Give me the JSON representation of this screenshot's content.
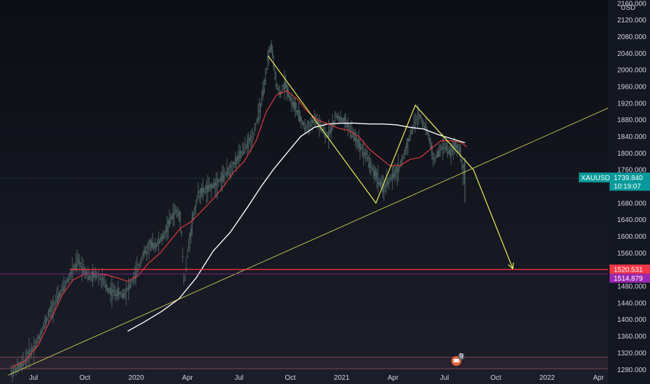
{
  "chart_data": {
    "type": "line",
    "symbol": "XAUUSD",
    "currency": "USD",
    "y_ticks": [
      2160,
      2120,
      2080,
      2040,
      2000,
      1960,
      1920,
      1880,
      1840,
      1800,
      1760,
      1720,
      1680,
      1640,
      1600,
      1560,
      1520,
      1480,
      1440,
      1400,
      1360,
      1320,
      1280
    ],
    "y_tick_labels": [
      "2160.000",
      "2120.000",
      "2080.000",
      "2040.000",
      "2000.000",
      "1960.000",
      "1920.000",
      "1880.000",
      "1840.000",
      "1800.000",
      "1760.000",
      "1720.000",
      "1680.000",
      "1640.000",
      "1600.000",
      "1560.000",
      "1520.000",
      "1480.000",
      "1440.000",
      "1400.000",
      "1360.000",
      "1320.000",
      "1280.000"
    ],
    "ylim": [
      1262,
      2168
    ],
    "x_ticks": [
      {
        "label": "Jul",
        "month": 6
      },
      {
        "label": "Oct",
        "month": 9
      },
      {
        "label": "2020",
        "month": 12
      },
      {
        "label": "Apr",
        "month": 15
      },
      {
        "label": "Jul",
        "month": 18
      },
      {
        "label": "Oct",
        "month": 21
      },
      {
        "label": "2021",
        "month": 24
      },
      {
        "label": "Apr",
        "month": 27
      },
      {
        "label": "Jul",
        "month": 30
      },
      {
        "label": "Oct",
        "month": 33
      },
      {
        "label": "2022",
        "month": 36
      },
      {
        "label": "Apr",
        "month": 39
      }
    ],
    "price_series": [
      [
        4.7,
        1272
      ],
      [
        5.3,
        1290
      ],
      [
        5.8,
        1320
      ],
      [
        6.2,
        1345
      ],
      [
        6.6,
        1385
      ],
      [
        7.0,
        1420
      ],
      [
        7.4,
        1450
      ],
      [
        7.8,
        1480
      ],
      [
        8.2,
        1510
      ],
      [
        8.6,
        1540
      ],
      [
        8.9,
        1525
      ],
      [
        9.3,
        1500
      ],
      [
        9.7,
        1510
      ],
      [
        10.0,
        1495
      ],
      [
        10.4,
        1470
      ],
      [
        10.8,
        1465
      ],
      [
        11.2,
        1460
      ],
      [
        11.6,
        1478
      ],
      [
        12.0,
        1512
      ],
      [
        12.4,
        1555
      ],
      [
        12.8,
        1578
      ],
      [
        13.2,
        1580
      ],
      [
        13.6,
        1600
      ],
      [
        14.0,
        1640
      ],
      [
        14.3,
        1662
      ],
      [
        14.6,
        1645
      ],
      [
        14.8,
        1480
      ],
      [
        15.0,
        1560
      ],
      [
        15.3,
        1640
      ],
      [
        15.6,
        1700
      ],
      [
        16.0,
        1710
      ],
      [
        16.4,
        1718
      ],
      [
        16.8,
        1732
      ],
      [
        17.2,
        1748
      ],
      [
        17.6,
        1768
      ],
      [
        18.0,
        1790
      ],
      [
        18.4,
        1815
      ],
      [
        18.8,
        1840
      ],
      [
        19.2,
        1900
      ],
      [
        19.5,
        1960
      ],
      [
        19.7,
        2030
      ],
      [
        19.9,
        2060
      ],
      [
        20.1,
        1985
      ],
      [
        20.4,
        1940
      ],
      [
        20.7,
        1970
      ],
      [
        21.0,
        1930
      ],
      [
        21.3,
        1910
      ],
      [
        21.6,
        1880
      ],
      [
        21.9,
        1860
      ],
      [
        22.2,
        1870
      ],
      [
        22.5,
        1880
      ],
      [
        22.8,
        1860
      ],
      [
        23.1,
        1840
      ],
      [
        23.4,
        1860
      ],
      [
        23.7,
        1890
      ],
      [
        24.0,
        1880
      ],
      [
        24.3,
        1870
      ],
      [
        24.6,
        1850
      ],
      [
        24.9,
        1830
      ],
      [
        25.2,
        1810
      ],
      [
        25.5,
        1790
      ],
      [
        25.8,
        1760
      ],
      [
        26.1,
        1740
      ],
      [
        26.4,
        1715
      ],
      [
        26.7,
        1730
      ],
      [
        27.0,
        1745
      ],
      [
        27.3,
        1760
      ],
      [
        27.6,
        1790
      ],
      [
        27.9,
        1830
      ],
      [
        28.2,
        1865
      ],
      [
        28.5,
        1895
      ],
      [
        28.8,
        1870
      ],
      [
        29.1,
        1840
      ],
      [
        29.4,
        1780
      ],
      [
        29.7,
        1805
      ],
      [
        30.0,
        1820
      ],
      [
        30.3,
        1800
      ],
      [
        30.6,
        1815
      ],
      [
        30.9,
        1810
      ],
      [
        31.1,
        1760
      ],
      [
        31.2,
        1740
      ]
    ],
    "ma_red": [
      [
        4.7,
        1285
      ],
      [
        5.5,
        1300
      ],
      [
        6.3,
        1340
      ],
      [
        7.0,
        1400
      ],
      [
        7.7,
        1460
      ],
      [
        8.3,
        1495
      ],
      [
        9.0,
        1510
      ],
      [
        9.6,
        1510
      ],
      [
        10.2,
        1508
      ],
      [
        10.9,
        1500
      ],
      [
        11.5,
        1492
      ],
      [
        12.1,
        1505
      ],
      [
        12.7,
        1535
      ],
      [
        13.4,
        1560
      ],
      [
        14.0,
        1590
      ],
      [
        14.6,
        1620
      ],
      [
        15.2,
        1635
      ],
      [
        15.8,
        1660
      ],
      [
        16.5,
        1690
      ],
      [
        17.1,
        1720
      ],
      [
        17.7,
        1755
      ],
      [
        18.3,
        1780
      ],
      [
        19.0,
        1830
      ],
      [
        19.6,
        1900
      ],
      [
        20.2,
        1940
      ],
      [
        20.8,
        1950
      ],
      [
        21.4,
        1930
      ],
      [
        22.0,
        1900
      ],
      [
        22.6,
        1880
      ],
      [
        23.2,
        1870
      ],
      [
        23.8,
        1860
      ],
      [
        24.4,
        1855
      ],
      [
        25.0,
        1840
      ],
      [
        25.6,
        1810
      ],
      [
        26.2,
        1790
      ],
      [
        26.8,
        1770
      ],
      [
        27.4,
        1770
      ],
      [
        28.0,
        1785
      ],
      [
        28.6,
        1790
      ],
      [
        29.2,
        1810
      ],
      [
        29.8,
        1830
      ],
      [
        30.4,
        1830
      ],
      [
        31.0,
        1825
      ],
      [
        31.3,
        1815
      ]
    ],
    "ma_white": [
      [
        11.5,
        1372
      ],
      [
        12.5,
        1395
      ],
      [
        13.5,
        1420
      ],
      [
        14.5,
        1450
      ],
      [
        15.5,
        1500
      ],
      [
        16.5,
        1565
      ],
      [
        17.5,
        1610
      ],
      [
        18.5,
        1670
      ],
      [
        19.3,
        1720
      ],
      [
        20.0,
        1760
      ],
      [
        20.8,
        1800
      ],
      [
        21.6,
        1840
      ],
      [
        22.4,
        1862
      ],
      [
        23.2,
        1870
      ],
      [
        24.0,
        1872
      ],
      [
        24.8,
        1872
      ],
      [
        25.6,
        1870
      ],
      [
        26.4,
        1870
      ],
      [
        27.2,
        1868
      ],
      [
        28.0,
        1862
      ],
      [
        28.8,
        1858
      ],
      [
        29.6,
        1845
      ],
      [
        30.4,
        1835
      ],
      [
        31.2,
        1825
      ]
    ],
    "trendline": [
      [
        4.5,
        1266
      ],
      [
        40.2,
        1920
      ]
    ],
    "zigzag": [
      [
        19.7,
        2034
      ],
      [
        26.0,
        1680
      ],
      [
        28.3,
        1915
      ],
      [
        31.7,
        1760
      ],
      [
        34.0,
        1522
      ]
    ],
    "h_line_red": 1520.531,
    "h_line_purple": 1514.879,
    "last_price": 1739.84,
    "price_labels": {
      "last": "1739.840",
      "countdown": "10:19:07",
      "red_level": "1520.531",
      "purple_level": "1514.879"
    },
    "support_zone": [
      1282,
      1310
    ],
    "colors": {
      "background": "#131722",
      "candle": "#4a5f5f",
      "ma_red": "#e03a3e",
      "ma_white": "#ffffff",
      "drawing": "#f0f05a",
      "h_line_red": "#f23645",
      "h_line_purple": "#9c27b0",
      "last_badge": "#089a9a",
      "red_badge": "#f23645",
      "purple_badge": "#9c27b0"
    },
    "event_marker": {
      "icon": "flag-icon",
      "count": "9",
      "month": 30.7
    }
  }
}
